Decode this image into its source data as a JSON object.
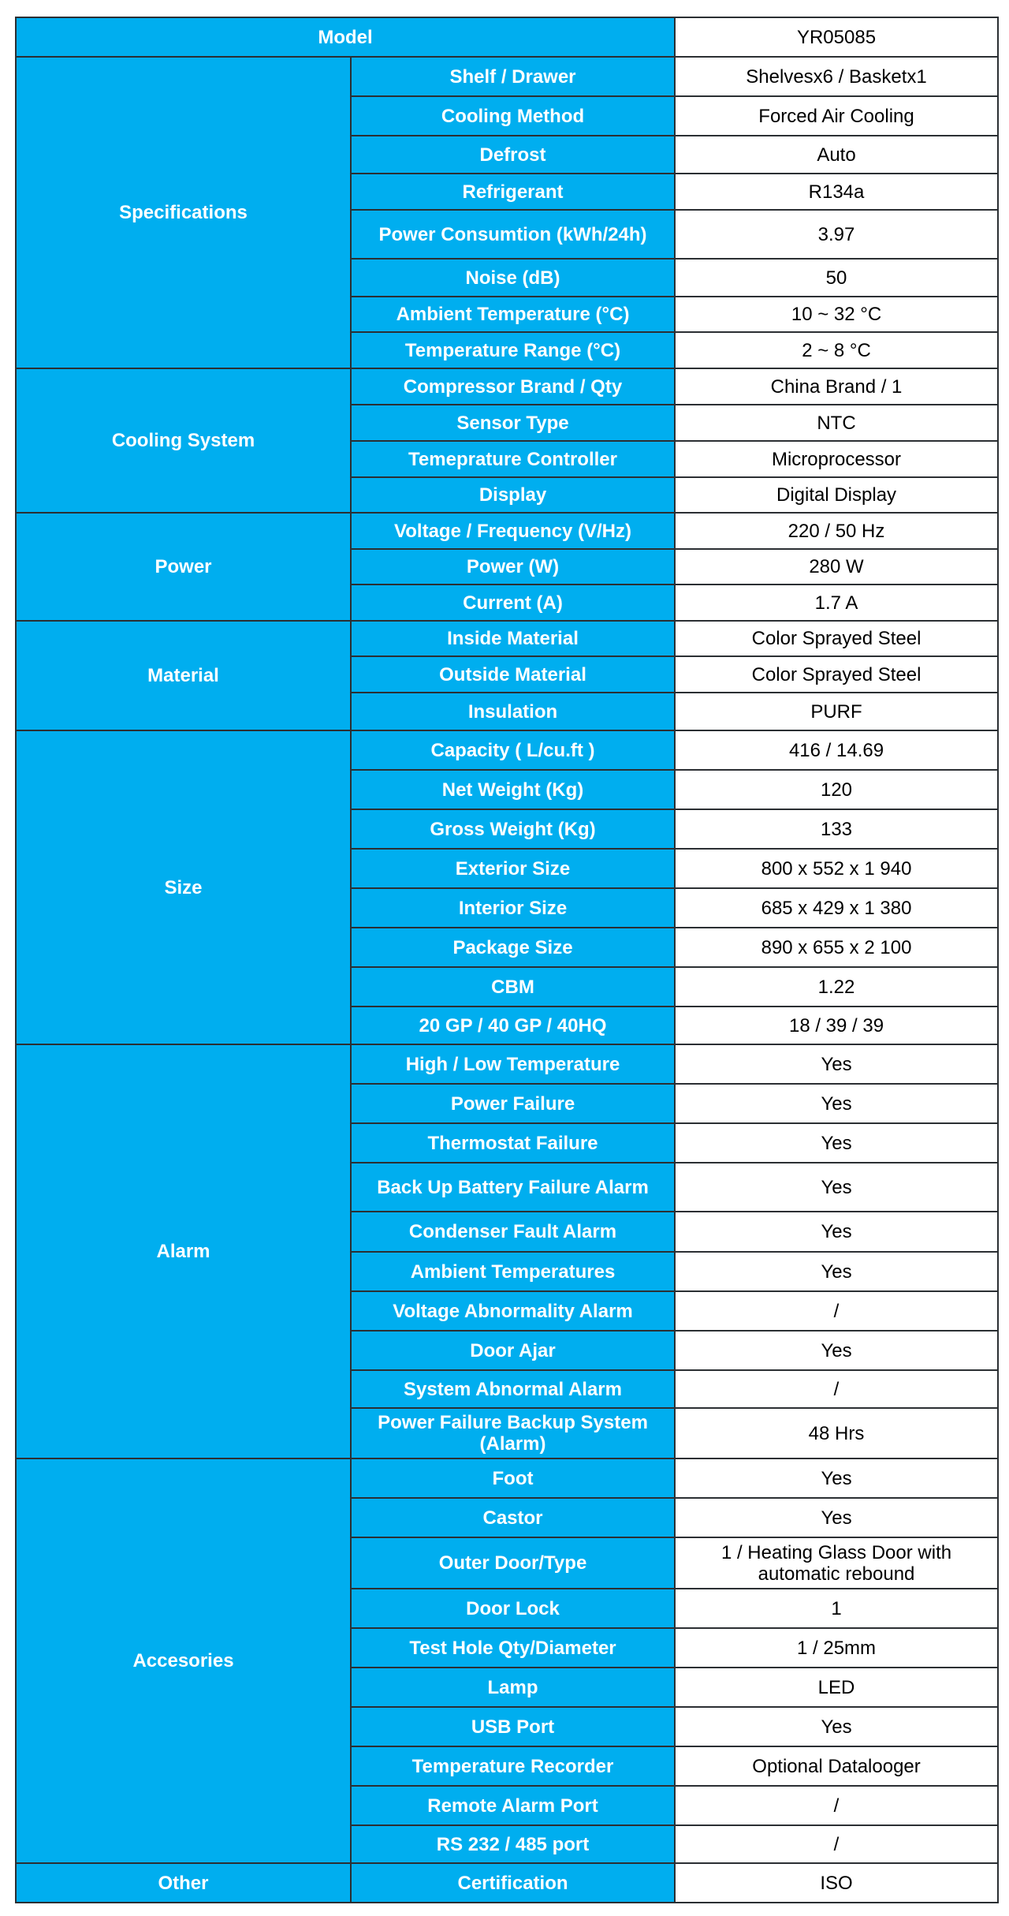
{
  "header_color": "#00AEEF",
  "model": {
    "label": "Model",
    "value": "YR05085"
  },
  "groups": [
    {
      "name": "Specifications",
      "rows": [
        {
          "label": "Shelf / Drawer",
          "value": "Shelvesx6 / Basketx1"
        },
        {
          "label": "Cooling Method",
          "value": "Forced Air Cooling"
        },
        {
          "label": "Defrost",
          "value": "Auto"
        },
        {
          "label": "Refrigerant",
          "value": "R134a"
        },
        {
          "label": "Power Consumtion (kWh/24h)",
          "value": "3.97"
        },
        {
          "label": "Noise (dB)",
          "value": "50"
        },
        {
          "label": "Ambient Temperature (°C)",
          "value": "10 ~ 32 °C"
        },
        {
          "label": "Temperature Range (°C)",
          "value": "2 ~ 8 °C"
        }
      ]
    },
    {
      "name": "Cooling System",
      "rows": [
        {
          "label": "Compressor Brand / Qty",
          "value": "China Brand / 1"
        },
        {
          "label": "Sensor Type",
          "value": "NTC"
        },
        {
          "label": "Temeprature Controller",
          "value": "Microprocessor"
        },
        {
          "label": "Display",
          "value": "Digital Display"
        }
      ]
    },
    {
      "name": "Power",
      "rows": [
        {
          "label": "Voltage / Frequency (V/Hz)",
          "value": "220 / 50 Hz"
        },
        {
          "label": "Power (W)",
          "value": "280 W"
        },
        {
          "label": "Current (A)",
          "value": "1.7 A"
        }
      ]
    },
    {
      "name": "Material",
      "rows": [
        {
          "label": "Inside Material",
          "value": "Color Sprayed Steel"
        },
        {
          "label": "Outside Material",
          "value": "Color Sprayed Steel"
        },
        {
          "label": "Insulation",
          "value": "PURF"
        }
      ]
    },
    {
      "name": "Size",
      "rows": [
        {
          "label": "Capacity ( L/cu.ft )",
          "value": "416 / 14.69"
        },
        {
          "label": "Net Weight (Kg)",
          "value": "120"
        },
        {
          "label": "Gross Weight (Kg)",
          "value": "133"
        },
        {
          "label": "Exterior Size",
          "value": "800 x 552 x 1 940"
        },
        {
          "label": "Interior Size",
          "value": "685 x 429 x 1 380"
        },
        {
          "label": "Package Size",
          "value": "890 x 655 x 2 100"
        },
        {
          "label": "CBM",
          "value": "1.22"
        },
        {
          "label": "20 GP / 40 GP / 40HQ",
          "value": "18 / 39 / 39"
        }
      ]
    },
    {
      "name": "Alarm",
      "rows": [
        {
          "label": "High / Low Temperature",
          "value": "Yes"
        },
        {
          "label": "Power Failure",
          "value": "Yes"
        },
        {
          "label": "Thermostat Failure",
          "value": "Yes"
        },
        {
          "label": "Back Up Battery Failure Alarm",
          "value": "Yes"
        },
        {
          "label": "Condenser Fault Alarm",
          "value": "Yes"
        },
        {
          "label": "Ambient Temperatures",
          "value": "Yes"
        },
        {
          "label": "Voltage Abnormality Alarm",
          "value": "/"
        },
        {
          "label": "Door Ajar",
          "value": "Yes"
        },
        {
          "label": "System Abnormal Alarm",
          "value": "/"
        },
        {
          "label": "Power Failure Backup System (Alarm)",
          "value": "48 Hrs"
        }
      ]
    },
    {
      "name": "Accesories",
      "rows": [
        {
          "label": "Foot",
          "value": "Yes"
        },
        {
          "label": "Castor",
          "value": "Yes"
        },
        {
          "label": "Outer Door/Type",
          "value": "1 / Heating Glass Door with automatic rebound"
        },
        {
          "label": "Door Lock",
          "value": "1"
        },
        {
          "label": "Test Hole Qty/Diameter",
          "value": "1 / 25mm"
        },
        {
          "label": "Lamp",
          "value": "LED"
        },
        {
          "label": "USB Port",
          "value": "Yes"
        },
        {
          "label": "Temperature Recorder",
          "value": "Optional Datalooger"
        },
        {
          "label": "Remote Alarm Port",
          "value": "/"
        },
        {
          "label": "RS 232 / 485 port",
          "value": "/"
        }
      ]
    },
    {
      "name": "Other",
      "rows": [
        {
          "label": "Certification",
          "value": "ISO"
        }
      ]
    }
  ]
}
